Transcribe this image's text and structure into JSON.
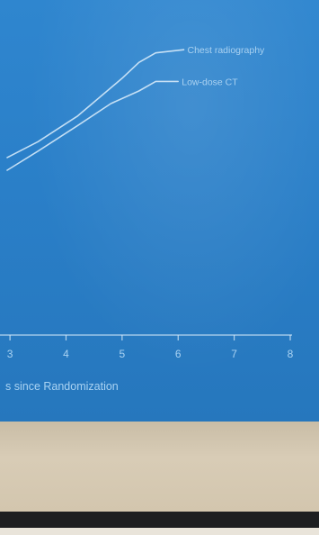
{
  "chart_data": {
    "type": "line",
    "xlabel": "s since Randomization",
    "x_ticks": [
      3,
      4,
      5,
      6,
      7,
      8
    ],
    "xlim": [
      2.95,
      8
    ],
    "ylim": [
      0,
      1
    ],
    "grid": false,
    "series": [
      {
        "name": "Chest radiography",
        "x": [
          2.95,
          3.5,
          4.2,
          5.0,
          5.3,
          5.6,
          6.1
        ],
        "y": [
          0.56,
          0.61,
          0.69,
          0.81,
          0.86,
          0.89,
          0.9
        ]
      },
      {
        "name": "Low-dose CT",
        "x": [
          2.95,
          3.5,
          4.2,
          4.8,
          5.3,
          5.6,
          6.0
        ],
        "y": [
          0.52,
          0.58,
          0.66,
          0.73,
          0.77,
          0.8,
          0.8
        ]
      }
    ]
  },
  "colors": {
    "screen_background": "#2a7fc8",
    "line_color": "#cfe6f7",
    "label_color": "#a9d2f2"
  }
}
